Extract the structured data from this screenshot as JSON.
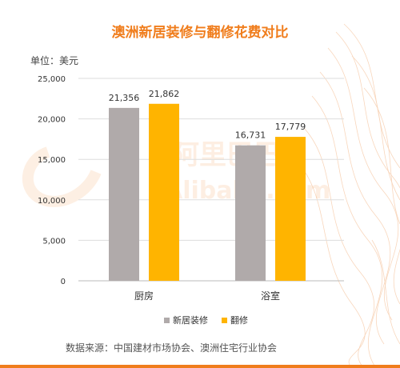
{
  "title": "澳洲新居装修与翻修花费对比",
  "unit_label": "单位：美元",
  "source": "数据来源：中国建材市场协会、澳洲住宅行业协会",
  "colors": {
    "accent": "#f07d1c",
    "new": "#b0aaaa",
    "renovate": "#ffb400"
  },
  "chart_data": {
    "type": "bar",
    "categories": [
      "厨房",
      "浴室"
    ],
    "series": [
      {
        "name": "新居装修",
        "values": [
          21356,
          16731
        ],
        "labels": [
          "21,356",
          "16,731"
        ]
      },
      {
        "name": "翻修",
        "values": [
          21862,
          17779
        ],
        "labels": [
          "21,862",
          "17,779"
        ]
      }
    ],
    "ylim": [
      0,
      25000
    ],
    "yticks": [
      "0",
      "5,000",
      "10,000",
      "15,000",
      "20,000",
      "25,000"
    ],
    "grid": true,
    "legend_position": "bottom"
  }
}
